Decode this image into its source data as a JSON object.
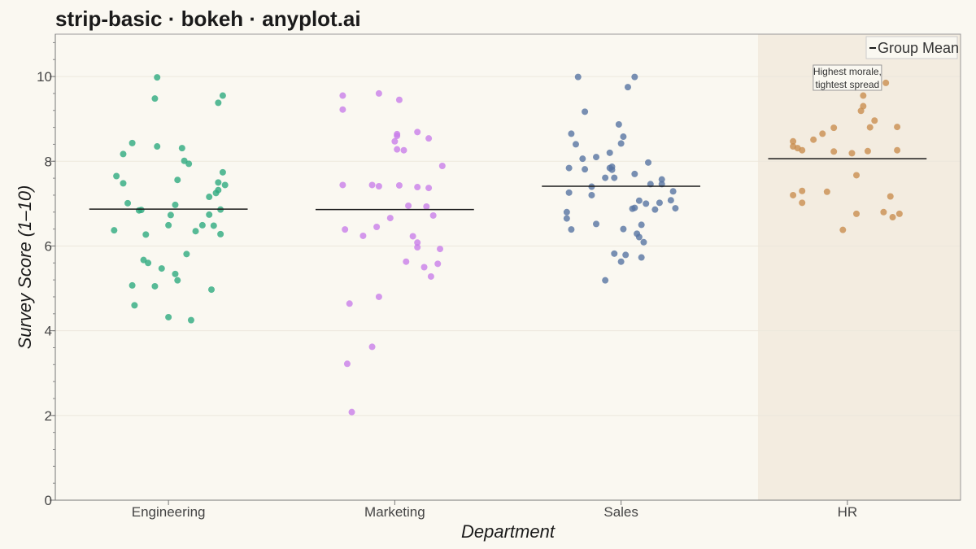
{
  "chart_data": {
    "type": "scatter",
    "title": "strip-basic · bokeh · anyplot.ai",
    "xlabel": "Department",
    "ylabel": "Survey Score (1–10)",
    "ylim": [
      0,
      11
    ],
    "yticks": [
      0,
      2,
      4,
      6,
      8,
      10
    ],
    "grid": "horizontal",
    "legend": {
      "position": "top-right",
      "entries": [
        "Group Mean"
      ]
    },
    "highlight_category": "HR",
    "categories": [
      "Engineering",
      "Marketing",
      "Sales",
      "HR"
    ],
    "annotation": {
      "category": "HR",
      "lines": [
        "Highest morale,",
        "tightest spread"
      ]
    },
    "series": [
      {
        "category": "Engineering",
        "color": "#2EAA7F",
        "mean": 6.87,
        "points": [
          [
            -0.05,
            9.98
          ],
          [
            -0.06,
            9.48
          ],
          [
            0.24,
            9.55
          ],
          [
            0.22,
            9.38
          ],
          [
            -0.16,
            8.43
          ],
          [
            -0.05,
            8.35
          ],
          [
            0.06,
            8.31
          ],
          [
            -0.2,
            8.17
          ],
          [
            0.07,
            8.01
          ],
          [
            0.09,
            7.94
          ],
          [
            -0.23,
            7.65
          ],
          [
            0.24,
            7.74
          ],
          [
            -0.2,
            7.48
          ],
          [
            0.04,
            7.56
          ],
          [
            0.22,
            7.5
          ],
          [
            0.25,
            7.44
          ],
          [
            0.22,
            7.32
          ],
          [
            0.21,
            7.25
          ],
          [
            0.18,
            7.16
          ],
          [
            -0.18,
            7.01
          ],
          [
            0.03,
            6.97
          ],
          [
            0.23,
            6.86
          ],
          [
            -0.12,
            6.85
          ],
          [
            -0.13,
            6.84
          ],
          [
            0.01,
            6.73
          ],
          [
            0.18,
            6.74
          ],
          [
            0.0,
            6.49
          ],
          [
            0.15,
            6.49
          ],
          [
            0.2,
            6.48
          ],
          [
            -0.24,
            6.37
          ],
          [
            0.12,
            6.35
          ],
          [
            -0.1,
            6.27
          ],
          [
            0.23,
            6.28
          ],
          [
            0.08,
            5.81
          ],
          [
            -0.11,
            5.67
          ],
          [
            -0.09,
            5.6
          ],
          [
            -0.03,
            5.47
          ],
          [
            0.03,
            5.34
          ],
          [
            0.04,
            5.19
          ],
          [
            -0.16,
            5.07
          ],
          [
            -0.06,
            5.05
          ],
          [
            0.19,
            4.97
          ],
          [
            -0.15,
            4.6
          ],
          [
            0.0,
            4.32
          ],
          [
            0.1,
            4.25
          ]
        ]
      },
      {
        "category": "Marketing",
        "color": "#C97EEA",
        "mean": 6.86,
        "points": [
          [
            -0.23,
            9.55
          ],
          [
            -0.07,
            9.6
          ],
          [
            0.02,
            9.45
          ],
          [
            -0.23,
            9.22
          ],
          [
            0.1,
            8.69
          ],
          [
            0.01,
            8.64
          ],
          [
            0.01,
            8.6
          ],
          [
            0.15,
            8.54
          ],
          [
            0.0,
            8.47
          ],
          [
            0.01,
            8.28
          ],
          [
            0.04,
            8.26
          ],
          [
            0.21,
            7.89
          ],
          [
            -0.23,
            7.44
          ],
          [
            -0.1,
            7.44
          ],
          [
            -0.07,
            7.41
          ],
          [
            0.02,
            7.43
          ],
          [
            0.1,
            7.39
          ],
          [
            0.15,
            7.37
          ],
          [
            0.06,
            6.95
          ],
          [
            0.14,
            6.93
          ],
          [
            0.17,
            6.72
          ],
          [
            -0.02,
            6.66
          ],
          [
            -0.08,
            6.45
          ],
          [
            -0.22,
            6.39
          ],
          [
            -0.14,
            6.24
          ],
          [
            0.08,
            6.23
          ],
          [
            0.1,
            6.08
          ],
          [
            0.2,
            5.93
          ],
          [
            0.1,
            5.97
          ],
          [
            0.05,
            5.63
          ],
          [
            0.19,
            5.58
          ],
          [
            0.13,
            5.5
          ],
          [
            0.16,
            5.28
          ],
          [
            -0.07,
            4.8
          ],
          [
            -0.2,
            4.64
          ],
          [
            -0.1,
            3.62
          ],
          [
            -0.21,
            3.22
          ],
          [
            -0.19,
            2.08
          ]
        ]
      },
      {
        "category": "Sales",
        "color": "#5874A3",
        "mean": 7.41,
        "points": [
          [
            -0.19,
            9.99
          ],
          [
            0.06,
            9.99
          ],
          [
            0.03,
            9.75
          ],
          [
            -0.16,
            9.17
          ],
          [
            -0.01,
            8.87
          ],
          [
            -0.22,
            8.65
          ],
          [
            0.01,
            8.58
          ],
          [
            -0.2,
            8.4
          ],
          [
            0.0,
            8.42
          ],
          [
            -0.05,
            8.2
          ],
          [
            -0.11,
            8.1
          ],
          [
            -0.17,
            8.06
          ],
          [
            0.12,
            7.97
          ],
          [
            -0.23,
            7.84
          ],
          [
            -0.16,
            7.81
          ],
          [
            -0.04,
            7.87
          ],
          [
            -0.05,
            7.84
          ],
          [
            -0.04,
            7.8
          ],
          [
            0.06,
            7.7
          ],
          [
            -0.07,
            7.61
          ],
          [
            -0.03,
            7.61
          ],
          [
            0.18,
            7.57
          ],
          [
            0.18,
            7.46
          ],
          [
            0.13,
            7.46
          ],
          [
            -0.13,
            7.4
          ],
          [
            0.23,
            7.29
          ],
          [
            -0.23,
            7.26
          ],
          [
            -0.13,
            7.2
          ],
          [
            0.08,
            7.07
          ],
          [
            0.11,
            7.0
          ],
          [
            0.17,
            7.02
          ],
          [
            0.22,
            7.08
          ],
          [
            0.06,
            6.9
          ],
          [
            0.05,
            6.88
          ],
          [
            0.15,
            6.86
          ],
          [
            0.24,
            6.89
          ],
          [
            0.09,
            6.5
          ],
          [
            -0.24,
            6.65
          ],
          [
            -0.11,
            6.52
          ],
          [
            0.01,
            6.4
          ],
          [
            -0.22,
            6.39
          ],
          [
            0.07,
            6.29
          ],
          [
            0.08,
            6.21
          ],
          [
            0.1,
            6.09
          ],
          [
            -0.03,
            5.82
          ],
          [
            0.02,
            5.79
          ],
          [
            0.09,
            5.73
          ],
          [
            0.0,
            5.63
          ],
          [
            -0.07,
            5.19
          ],
          [
            -0.24,
            6.8
          ]
        ]
      },
      {
        "category": "HR",
        "color": "#C98E50",
        "mean": 8.06,
        "points": [
          [
            0.17,
            9.85
          ],
          [
            0.07,
            9.55
          ],
          [
            0.07,
            9.3
          ],
          [
            0.06,
            9.19
          ],
          [
            0.12,
            8.96
          ],
          [
            0.22,
            8.81
          ],
          [
            0.1,
            8.8
          ],
          [
            -0.06,
            8.79
          ],
          [
            -0.11,
            8.65
          ],
          [
            -0.24,
            8.47
          ],
          [
            -0.15,
            8.51
          ],
          [
            -0.24,
            8.35
          ],
          [
            -0.22,
            8.31
          ],
          [
            -0.2,
            8.26
          ],
          [
            -0.06,
            8.23
          ],
          [
            0.02,
            8.19
          ],
          [
            0.09,
            8.24
          ],
          [
            0.22,
            8.26
          ],
          [
            0.04,
            7.67
          ],
          [
            -0.2,
            7.3
          ],
          [
            -0.09,
            7.28
          ],
          [
            -0.24,
            7.2
          ],
          [
            0.19,
            7.17
          ],
          [
            -0.2,
            7.02
          ],
          [
            0.16,
            6.8
          ],
          [
            0.04,
            6.76
          ],
          [
            0.23,
            6.76
          ],
          [
            0.2,
            6.68
          ],
          [
            -0.02,
            6.38
          ]
        ]
      }
    ]
  }
}
